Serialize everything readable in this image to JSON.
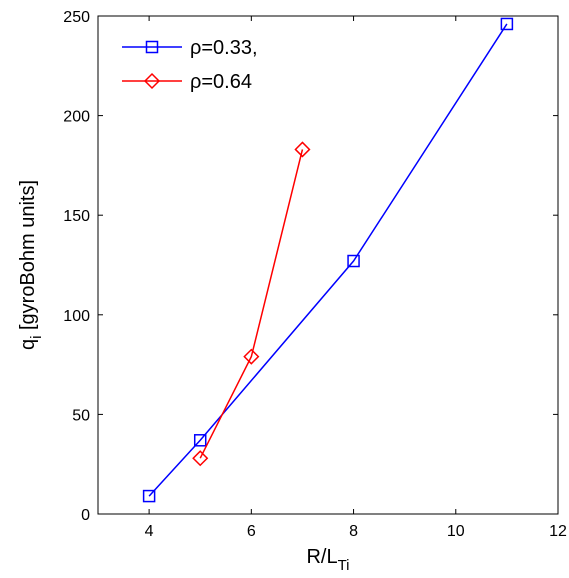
{
  "chart_data": {
    "type": "line",
    "xlabel": {
      "main": "R/L",
      "sub": "Ti"
    },
    "ylabel": {
      "main": "q",
      "sub": "i",
      "rest": " [gyroBohm units]"
    },
    "xlim": [
      3,
      12
    ],
    "ylim": [
      0,
      250
    ],
    "xticks": [
      4,
      6,
      8,
      10,
      12
    ],
    "yticks": [
      0,
      50,
      100,
      150,
      200,
      250
    ],
    "grid": false,
    "legend_position": "top-left",
    "series": [
      {
        "name": "ρ=0.33,",
        "color": "#0000ff",
        "marker": "square",
        "x": [
          4,
          5,
          8,
          11
        ],
        "y": [
          9,
          37,
          127,
          246
        ]
      },
      {
        "name": "ρ=0.64",
        "color": "#ff0000",
        "marker": "diamond",
        "x": [
          5,
          6,
          7
        ],
        "y": [
          28,
          79,
          183
        ]
      }
    ]
  }
}
